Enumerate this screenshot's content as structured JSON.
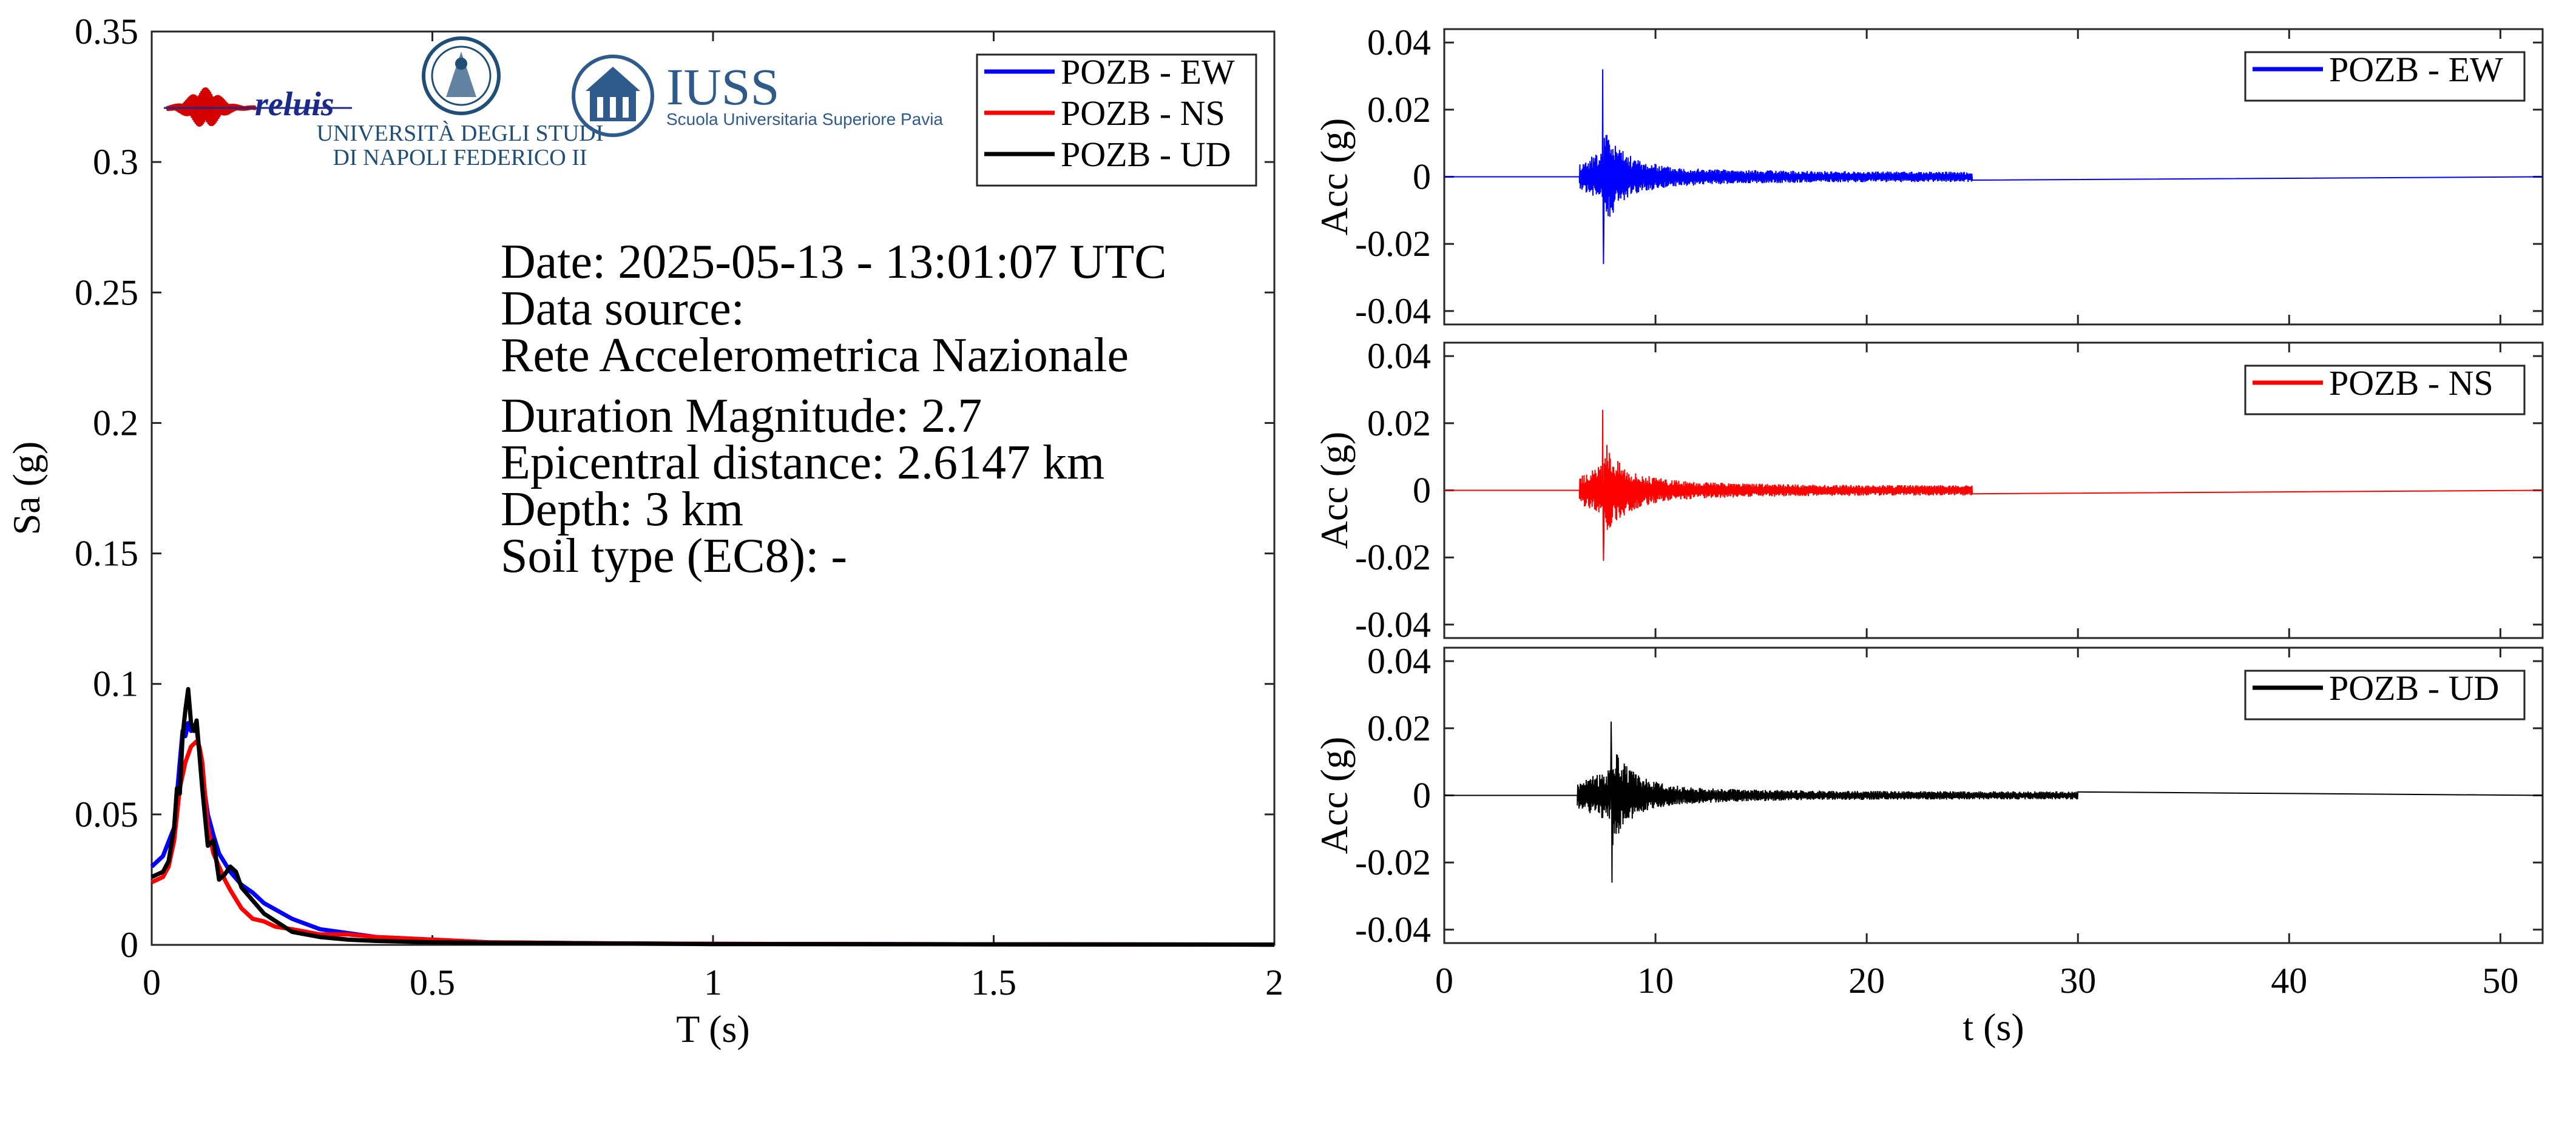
{
  "chart_data": [
    {
      "type": "line",
      "title": "",
      "xlabel": "T (s)",
      "ylabel": "Sa (g)",
      "xlim": [
        0,
        2
      ],
      "ylim": [
        0,
        0.35
      ],
      "xticks": [
        "0",
        "0.5",
        "1",
        "1.5",
        "2"
      ],
      "yticks": [
        "0",
        "0.05",
        "0.1",
        "0.15",
        "0.2",
        "0.25",
        "0.3",
        "0.35"
      ],
      "legend_position": "top-right",
      "grid": false,
      "series": [
        {
          "name": "POZB - EW",
          "color": "#0000ff",
          "x": [
            0,
            0.02,
            0.04,
            0.05,
            0.055,
            0.06,
            0.065,
            0.07,
            0.08,
            0.09,
            0.1,
            0.11,
            0.12,
            0.14,
            0.16,
            0.18,
            0.2,
            0.25,
            0.3,
            0.4,
            0.5,
            0.6,
            0.8,
            1.0,
            1.5,
            2.0
          ],
          "y": [
            0.03,
            0.034,
            0.045,
            0.07,
            0.082,
            0.08,
            0.085,
            0.082,
            0.083,
            0.065,
            0.05,
            0.042,
            0.035,
            0.028,
            0.023,
            0.02,
            0.016,
            0.01,
            0.006,
            0.003,
            0.002,
            0.001,
            0.0006,
            0.0004,
            0.0002,
            0.0001
          ]
        },
        {
          "name": "POZB - NS",
          "color": "#ff0000",
          "x": [
            0,
            0.02,
            0.03,
            0.04,
            0.05,
            0.06,
            0.07,
            0.08,
            0.085,
            0.09,
            0.1,
            0.11,
            0.12,
            0.13,
            0.14,
            0.16,
            0.18,
            0.2,
            0.22,
            0.25,
            0.3,
            0.35,
            0.4,
            0.5,
            0.6,
            0.8,
            1.0,
            1.5,
            2.0
          ],
          "y": [
            0.024,
            0.026,
            0.03,
            0.04,
            0.06,
            0.07,
            0.076,
            0.078,
            0.076,
            0.07,
            0.045,
            0.035,
            0.03,
            0.025,
            0.021,
            0.014,
            0.01,
            0.009,
            0.007,
            0.006,
            0.004,
            0.004,
            0.003,
            0.002,
            0.001,
            0.0006,
            0.0004,
            0.0002,
            0.0001
          ]
        },
        {
          "name": "POZB - UD",
          "color": "#000000",
          "x": [
            0,
            0.02,
            0.03,
            0.04,
            0.045,
            0.05,
            0.055,
            0.06,
            0.065,
            0.07,
            0.075,
            0.08,
            0.09,
            0.1,
            0.11,
            0.12,
            0.13,
            0.14,
            0.15,
            0.16,
            0.18,
            0.2,
            0.25,
            0.3,
            0.35,
            0.4,
            0.5,
            0.6,
            0.8,
            1.0,
            1.5,
            2.0
          ],
          "y": [
            0.026,
            0.028,
            0.032,
            0.045,
            0.06,
            0.058,
            0.08,
            0.09,
            0.098,
            0.085,
            0.082,
            0.086,
            0.06,
            0.038,
            0.04,
            0.025,
            0.027,
            0.03,
            0.028,
            0.022,
            0.017,
            0.012,
            0.005,
            0.003,
            0.002,
            0.0015,
            0.001,
            0.0008,
            0.0005,
            0.0003,
            0.0002,
            0.0001
          ]
        }
      ]
    },
    {
      "type": "line",
      "title": "",
      "xlabel": "",
      "ylabel": "Acc (g)",
      "xlim": [
        0,
        52
      ],
      "ylim": [
        -0.044,
        0.044
      ],
      "xticks": [],
      "yticks": [
        "-0.04",
        "-0.02",
        "0",
        "0.02",
        "0.04"
      ],
      "legend_position": "top-right",
      "series": [
        {
          "name": "POZB - EW",
          "color": "#0000ff",
          "x": [],
          "y": []
        }
      ],
      "trace": {
        "onset_s": 6.4,
        "peak_time_s": 7.5,
        "peak_pos": 0.032,
        "peak_neg": -0.026,
        "coda_amp": 0.0015,
        "coda_end_s": 25
      }
    },
    {
      "type": "line",
      "title": "",
      "xlabel": "",
      "ylabel": "Acc (g)",
      "xlim": [
        0,
        52
      ],
      "ylim": [
        -0.044,
        0.044
      ],
      "xticks": [],
      "yticks": [
        "-0.04",
        "-0.02",
        "0",
        "0.02",
        "0.04"
      ],
      "legend_position": "top-right",
      "series": [
        {
          "name": "POZB - NS",
          "color": "#ff0000",
          "x": [],
          "y": []
        }
      ],
      "trace": {
        "onset_s": 6.4,
        "peak_time_s": 7.5,
        "peak_pos": 0.024,
        "peak_neg": -0.021,
        "coda_amp": 0.0015,
        "coda_end_s": 25
      }
    },
    {
      "type": "line",
      "title": "",
      "xlabel": "t (s)",
      "ylabel": "Acc (g)",
      "xlim": [
        0,
        52
      ],
      "ylim": [
        -0.044,
        0.044
      ],
      "xticks": [
        "0",
        "10",
        "20",
        "30",
        "40",
        "50"
      ],
      "yticks": [
        "-0.04",
        "-0.02",
        "0",
        "0.02",
        "0.04"
      ],
      "legend_position": "top-right",
      "series": [
        {
          "name": "POZB - UD",
          "color": "#000000",
          "x": [],
          "y": []
        }
      ],
      "trace": {
        "onset_s": 6.3,
        "peak_time_s": 7.9,
        "peak_pos": 0.022,
        "peak_neg": -0.026,
        "coda_amp": 0.0012,
        "coda_end_s": 30
      }
    }
  ],
  "info": {
    "date": "Date: 2025-05-13 - 13:01:07 UTC",
    "source_label": "Data source:",
    "source_name": "Rete Accelerometrica Nazionale",
    "magnitude": "Duration Magnitude: 2.7",
    "distance": "Epicentral distance: 2.6147 km",
    "depth": "Depth: 3 km",
    "soil": "Soil type (EC8): -"
  },
  "logos": {
    "reluis": "reluis",
    "unina_line1": "UNIVERSITÀ DEGLI STUDI",
    "unina_line2": "DI NAPOLI FEDERICO II",
    "iuss": "IUSS",
    "iuss_sub": "Scuola Universitaria Superiore Pavia",
    "colors": {
      "iuss": "#2e5b8c",
      "reluis_red": "#d40000",
      "reluis_blue": "#1b2a8a"
    }
  }
}
